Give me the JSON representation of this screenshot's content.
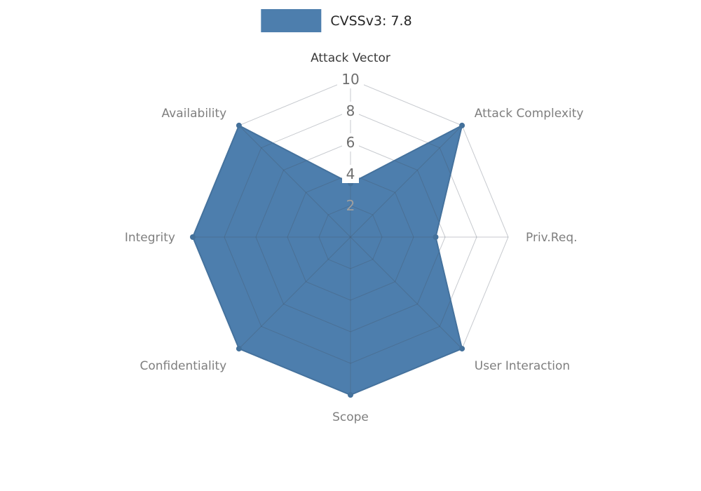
{
  "legend": {
    "label": "CVSSv3: 7.8",
    "swatch_color": "#4d7ead"
  },
  "chart_data": {
    "type": "radar",
    "title": "CVSSv3: 7.8",
    "categories": [
      "Attack Vector",
      "Attack Complexity",
      "Priv.Req.",
      "User Interaction",
      "Scope",
      "Confidentiality",
      "Integrity",
      "Availability"
    ],
    "series": [
      {
        "name": "CVSSv3: 7.8",
        "values": [
          3.4,
          10,
          5.4,
          10,
          10,
          10,
          10,
          10
        ]
      }
    ],
    "rmax": 10,
    "ticks": [
      {
        "value": 10,
        "boxed": true
      },
      {
        "value": 8,
        "boxed": true
      },
      {
        "value": 6,
        "boxed": true
      },
      {
        "value": 4,
        "boxed": true
      },
      {
        "value": 2,
        "boxed": false
      }
    ],
    "grid": true,
    "legend_position": "top",
    "fill_color": "#4d7ead",
    "outline_color": "#45729d",
    "marker_color": "#44719b",
    "grid_color_rgba": "rgba(70,80,95,0.30)",
    "label_color": "#7f7f7f",
    "highlight_label": "Attack Vector",
    "highlight_color": "#3a3a3a",
    "tick_color": "#6e6e6e",
    "muted_tick_color": "#9f9f9f"
  }
}
